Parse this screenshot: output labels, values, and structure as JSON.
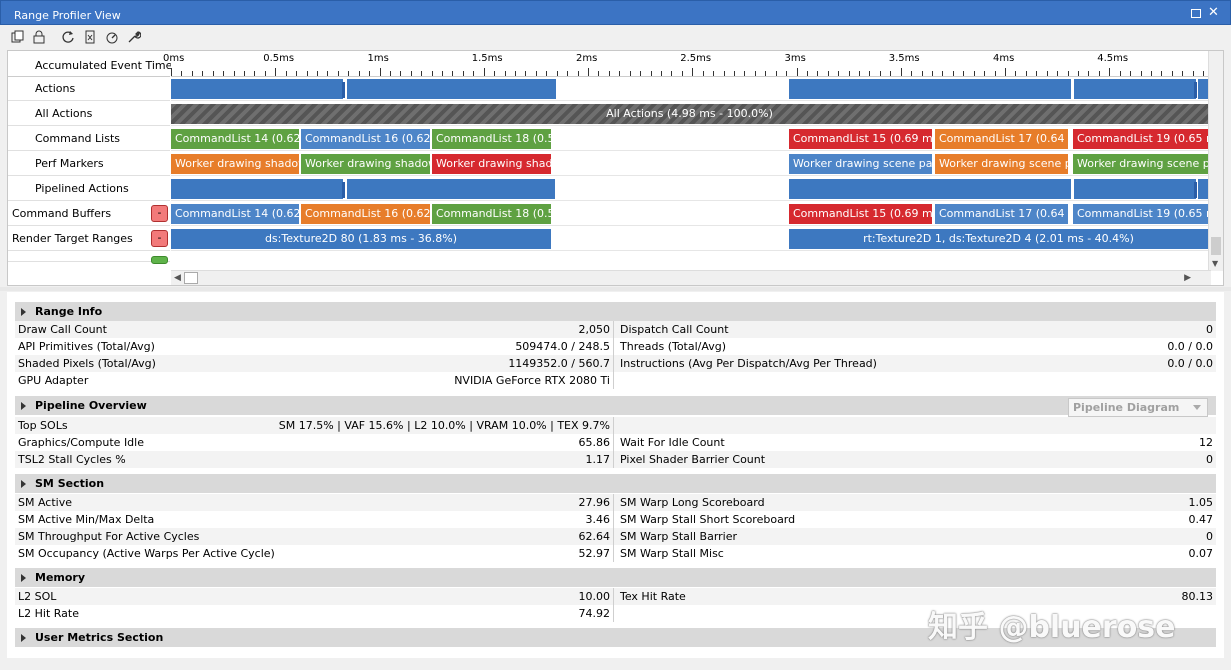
{
  "window": {
    "title": "Range Profiler View"
  },
  "toolbar": {
    "buttons": [
      "copy-icon",
      "lock-icon",
      "refresh-icon",
      "export-icon",
      "gauge-icon",
      "wrench-icon"
    ]
  },
  "timeline": {
    "ruler_label": "Accumulated Event Times",
    "ticks": [
      "0ms",
      "0.5ms",
      "1ms",
      "1.5ms",
      "2ms",
      "2.5ms",
      "3ms",
      "3.5ms",
      "4ms",
      "4.5ms"
    ],
    "rows": {
      "actions": "Actions",
      "all_actions": "All Actions",
      "command_lists": "Command Lists",
      "perf_markers": "Perf Markers",
      "pipelined_actions": "Pipelined Actions",
      "command_buffers": "Command Buffers",
      "render_target_ranges": "Render Target Ranges"
    },
    "collapse_symbol": "-",
    "all_actions_bar": "All Actions (4.98 ms - 100.0%)",
    "command_lists_bars": [
      "CommandList 14 (0.62 ms",
      "CommandList 16 (0.62 ms",
      "CommandList 18 (0.58 r",
      "CommandList 15 (0.69 ms - :",
      "CommandList 17 (0.64 ms",
      "CommandList 19 (0.65 ms -"
    ],
    "perf_markers_bars": [
      "Worker drawing shadow p",
      "Worker drawing shadow p",
      "Worker drawing shadow",
      "Worker drawing scene pass.",
      "Worker drawing scene pas",
      "Worker drawing scene pas"
    ],
    "command_buffers_bars": [
      "CommandList 14 (0.62 ms",
      "CommandList 16 (0.62 ms",
      "CommandList 18 (0.58 r",
      "CommandList 15 (0.69 ms - :",
      "CommandList 17 (0.64 ms",
      "CommandList 19 (0.65 ms"
    ],
    "render_target_bars": [
      "ds:Texture2D 80 (1.83 ms - 36.8%)",
      "rt:Texture2D 1, ds:Texture2D 4 (2.01 ms - 40.4%)"
    ]
  },
  "sections": {
    "range_info": {
      "title": "Range Info",
      "rows": [
        {
          "lname": "Draw Call Count",
          "lval": "2,050",
          "rname": "Dispatch Call Count",
          "rval": "0"
        },
        {
          "lname": "API Primitives (Total/Avg)",
          "lval": "509474.0 / 248.5",
          "rname": "Threads (Total/Avg)",
          "rval": "0.0 / 0.0"
        },
        {
          "lname": "Shaded Pixels (Total/Avg)",
          "lval": "1149352.0 / 560.7",
          "rname": "Instructions (Avg Per Dispatch/Avg Per Thread)",
          "rval": "0.0 / 0.0"
        },
        {
          "lname": "GPU Adapter",
          "lval": "NVIDIA GeForce RTX 2080 Ti",
          "rname": "",
          "rval": ""
        }
      ]
    },
    "pipeline_overview": {
      "title": "Pipeline Overview",
      "dropdown": "Pipeline Diagram",
      "rows": [
        {
          "lname": "Top SOLs",
          "lval": "SM 17.5% | VAF 15.6% | L2 10.0% | VRAM 10.0% | TEX 9.7%",
          "rname": "",
          "rval": ""
        },
        {
          "lname": "Graphics/Compute Idle",
          "lval": "65.86",
          "rname": "Wait For Idle Count",
          "rval": "12"
        },
        {
          "lname": "TSL2 Stall Cycles %",
          "lval": "1.17",
          "rname": "Pixel Shader Barrier Count",
          "rval": "0"
        }
      ]
    },
    "sm_section": {
      "title": "SM Section",
      "rows": [
        {
          "lname": "SM Active",
          "lval": "27.96",
          "rname": "SM Warp Long Scoreboard",
          "rval": "1.05"
        },
        {
          "lname": "SM Active Min/Max Delta",
          "lval": "3.46",
          "rname": "SM Warp Stall Short Scoreboard",
          "rval": "0.47"
        },
        {
          "lname": "SM Throughput For Active Cycles",
          "lval": "62.64",
          "rname": "SM Warp Stall Barrier",
          "rval": "0"
        },
        {
          "lname": "SM Occupancy (Active Warps Per Active Cycle)",
          "lval": "52.97",
          "rname": "SM Warp Stall Misc",
          "rval": "0.07"
        }
      ]
    },
    "memory": {
      "title": "Memory",
      "rows": [
        {
          "lname": "L2 SOL",
          "lval": "10.00",
          "rname": "Tex Hit Rate",
          "rval": "80.13"
        },
        {
          "lname": "L2 Hit Rate",
          "lval": "74.92",
          "rname": "",
          "rval": ""
        }
      ]
    },
    "user_metrics": {
      "title": "User Metrics Section"
    }
  },
  "watermark": "知乎 @bluerose"
}
